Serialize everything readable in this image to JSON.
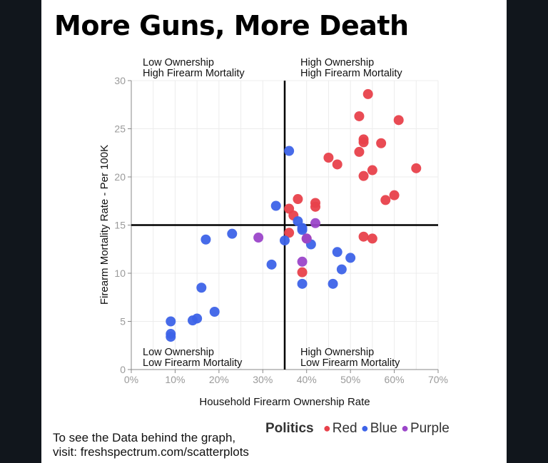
{
  "title": "More Guns, More Death",
  "footer": {
    "line1": "To see the Data behind the graph,",
    "line2": "visit: freshspectrum.com/scatterplots"
  },
  "legend": {
    "title": "Politics",
    "items": [
      {
        "label": "Red",
        "color": "#e8414b"
      },
      {
        "label": "Blue",
        "color": "#3d63e8"
      },
      {
        "label": "Purple",
        "color": "#9b46c9"
      }
    ]
  },
  "chart_data": {
    "type": "scatter",
    "xlabel": "Household Firearm Ownership Rate",
    "ylabel": "Firearm Mortality Rate - Per 100K",
    "xlim": [
      0,
      70
    ],
    "ylim": [
      0,
      30
    ],
    "x_ticks": [
      "0%",
      "10%",
      "20%",
      "30%",
      "40%",
      "50%",
      "60%",
      "70%"
    ],
    "x_tick_values": [
      0,
      10,
      20,
      30,
      40,
      50,
      60,
      70
    ],
    "y_ticks": [
      "0",
      "5",
      "10",
      "15",
      "20",
      "25",
      "30"
    ],
    "y_tick_values": [
      0,
      5,
      10,
      15,
      20,
      25,
      30
    ],
    "grid": true,
    "divider_x": 35,
    "divider_y": 15,
    "quadrant_labels": {
      "top_left": [
        "Low Ownership",
        "High Firearm Mortality"
      ],
      "top_right": [
        "High Ownership",
        "High Firearm Mortality"
      ],
      "bottom_left": [
        "Low Ownership",
        "Low Firearm Mortality"
      ],
      "bottom_right": [
        "High Ownership",
        "Low Firearm Mortality"
      ]
    },
    "series": [
      {
        "name": "Red",
        "color": "#e8414b",
        "points": [
          [
            54,
            28.6
          ],
          [
            52,
            26.3
          ],
          [
            61,
            25.9
          ],
          [
            53,
            23.9
          ],
          [
            53,
            23.6
          ],
          [
            57,
            23.5
          ],
          [
            52,
            22.6
          ],
          [
            45,
            22.0
          ],
          [
            47,
            21.3
          ],
          [
            65,
            20.9
          ],
          [
            55,
            20.7
          ],
          [
            53,
            20.1
          ],
          [
            60,
            18.1
          ],
          [
            58,
            17.6
          ],
          [
            38,
            17.7
          ],
          [
            42,
            17.3
          ],
          [
            42,
            16.9
          ],
          [
            36,
            16.7
          ],
          [
            37,
            16.0
          ],
          [
            36,
            14.2
          ],
          [
            53,
            13.8
          ],
          [
            55,
            13.6
          ],
          [
            40,
            13.6
          ],
          [
            39,
            10.1
          ]
        ]
      },
      {
        "name": "Blue",
        "color": "#3d63e8",
        "points": [
          [
            36,
            22.7
          ],
          [
            33,
            17.0
          ],
          [
            38,
            15.4
          ],
          [
            39,
            14.5
          ],
          [
            39,
            14.7
          ],
          [
            23,
            14.1
          ],
          [
            17,
            13.5
          ],
          [
            35,
            13.4
          ],
          [
            41,
            13.0
          ],
          [
            47,
            12.2
          ],
          [
            50,
            11.6
          ],
          [
            32,
            10.9
          ],
          [
            48,
            10.4
          ],
          [
            39,
            8.9
          ],
          [
            46,
            8.9
          ],
          [
            16,
            8.5
          ],
          [
            19,
            6.0
          ],
          [
            15,
            5.3
          ],
          [
            14,
            5.1
          ],
          [
            9,
            5.0
          ],
          [
            9,
            3.7
          ],
          [
            9,
            3.4
          ]
        ]
      },
      {
        "name": "Purple",
        "color": "#9b46c9",
        "points": [
          [
            42,
            15.2
          ],
          [
            29,
            13.7
          ],
          [
            40,
            13.6
          ],
          [
            39,
            11.2
          ]
        ]
      }
    ]
  }
}
